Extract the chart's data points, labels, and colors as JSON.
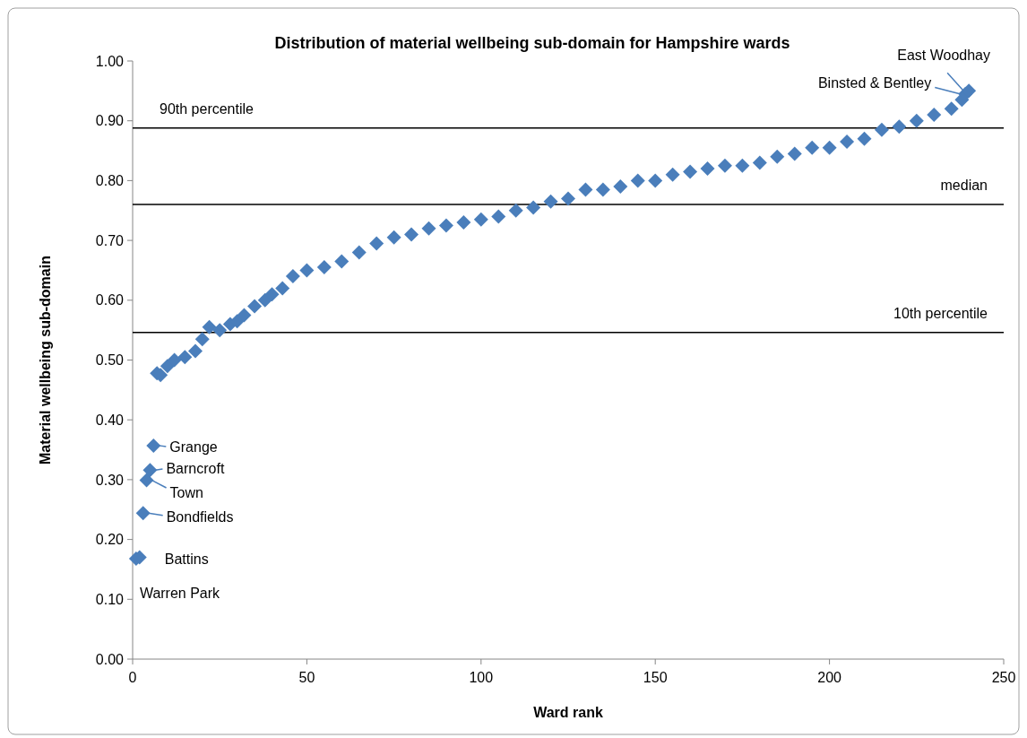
{
  "chart_data": {
    "type": "scatter",
    "title": "Distribution of material wellbeing sub-domain for Hampshire wards",
    "xlabel": "Ward rank",
    "ylabel": "Material wellbeing sub-domain",
    "x": [
      1,
      2,
      3,
      4,
      5,
      6,
      7,
      8,
      10,
      12,
      15,
      18,
      20,
      22,
      25,
      28,
      30,
      32,
      35,
      38,
      40,
      43,
      46,
      50,
      55,
      60,
      65,
      70,
      75,
      80,
      85,
      90,
      95,
      100,
      105,
      110,
      115,
      120,
      125,
      130,
      135,
      140,
      145,
      150,
      155,
      160,
      165,
      170,
      175,
      180,
      185,
      190,
      195,
      200,
      205,
      210,
      215,
      220,
      225,
      230,
      235,
      238,
      239,
      240
    ],
    "series": [
      {
        "color": "#4a7ebb",
        "values": [
          0.168,
          0.17,
          0.244,
          0.299,
          0.316,
          0.357,
          0.478,
          0.475,
          0.49,
          0.5,
          0.505,
          0.515,
          0.535,
          0.555,
          0.55,
          0.56,
          0.565,
          0.575,
          0.59,
          0.6,
          0.61,
          0.62,
          0.64,
          0.65,
          0.655,
          0.665,
          0.68,
          0.695,
          0.705,
          0.71,
          0.72,
          0.725,
          0.73,
          0.735,
          0.74,
          0.75,
          0.755,
          0.765,
          0.77,
          0.785,
          0.785,
          0.79,
          0.8,
          0.8,
          0.81,
          0.815,
          0.82,
          0.825,
          0.825,
          0.83,
          0.84,
          0.845,
          0.855,
          0.855,
          0.865,
          0.87,
          0.885,
          0.89,
          0.9,
          0.91,
          0.92,
          0.935,
          0.945,
          0.95
        ]
      }
    ],
    "marker": "diamond",
    "xlim": [
      0,
      250
    ],
    "xticks": [
      0,
      50,
      100,
      150,
      200,
      250
    ],
    "ylim": [
      0,
      1
    ],
    "yticks": [
      {
        "value": 0,
        "label": "0.00"
      },
      {
        "value": 0.1,
        "label": "0.10"
      },
      {
        "value": 0.2,
        "label": "0.20"
      },
      {
        "value": 0.3,
        "label": "0.30"
      },
      {
        "value": 0.4,
        "label": "0.40"
      },
      {
        "value": 0.5,
        "label": "0.50"
      },
      {
        "value": 0.6,
        "label": "0.60"
      },
      {
        "value": 0.7,
        "label": "0.70"
      },
      {
        "value": 0.8,
        "label": "0.80"
      },
      {
        "value": 0.9,
        "label": "0.90"
      },
      {
        "value": 1,
        "label": "1.00"
      }
    ],
    "ref_lines": [
      {
        "axis": "y",
        "value": 0.888,
        "label": "90th percentile",
        "color": "#000000"
      },
      {
        "axis": "y",
        "value": 0.76,
        "label": "median",
        "color": "#000000"
      },
      {
        "axis": "y",
        "value": 0.546,
        "label": "10th percentile",
        "color": "#000000"
      }
    ],
    "annotations": [
      {
        "text": "Warren Park",
        "x": 1,
        "y": 0.168
      },
      {
        "text": "Battins",
        "x": 2,
        "y": 0.17
      },
      {
        "text": "Bondfields",
        "x": 3,
        "y": 0.244
      },
      {
        "text": "Town",
        "x": 4,
        "y": 0.299
      },
      {
        "text": "Barncroft",
        "x": 5,
        "y": 0.316
      },
      {
        "text": "Grange",
        "x": 6,
        "y": 0.357
      },
      {
        "text": "Binsted & Bentley",
        "x": 239,
        "y": 0.945
      },
      {
        "text": "East Woodhay",
        "x": 240,
        "y": 0.95
      }
    ]
  }
}
